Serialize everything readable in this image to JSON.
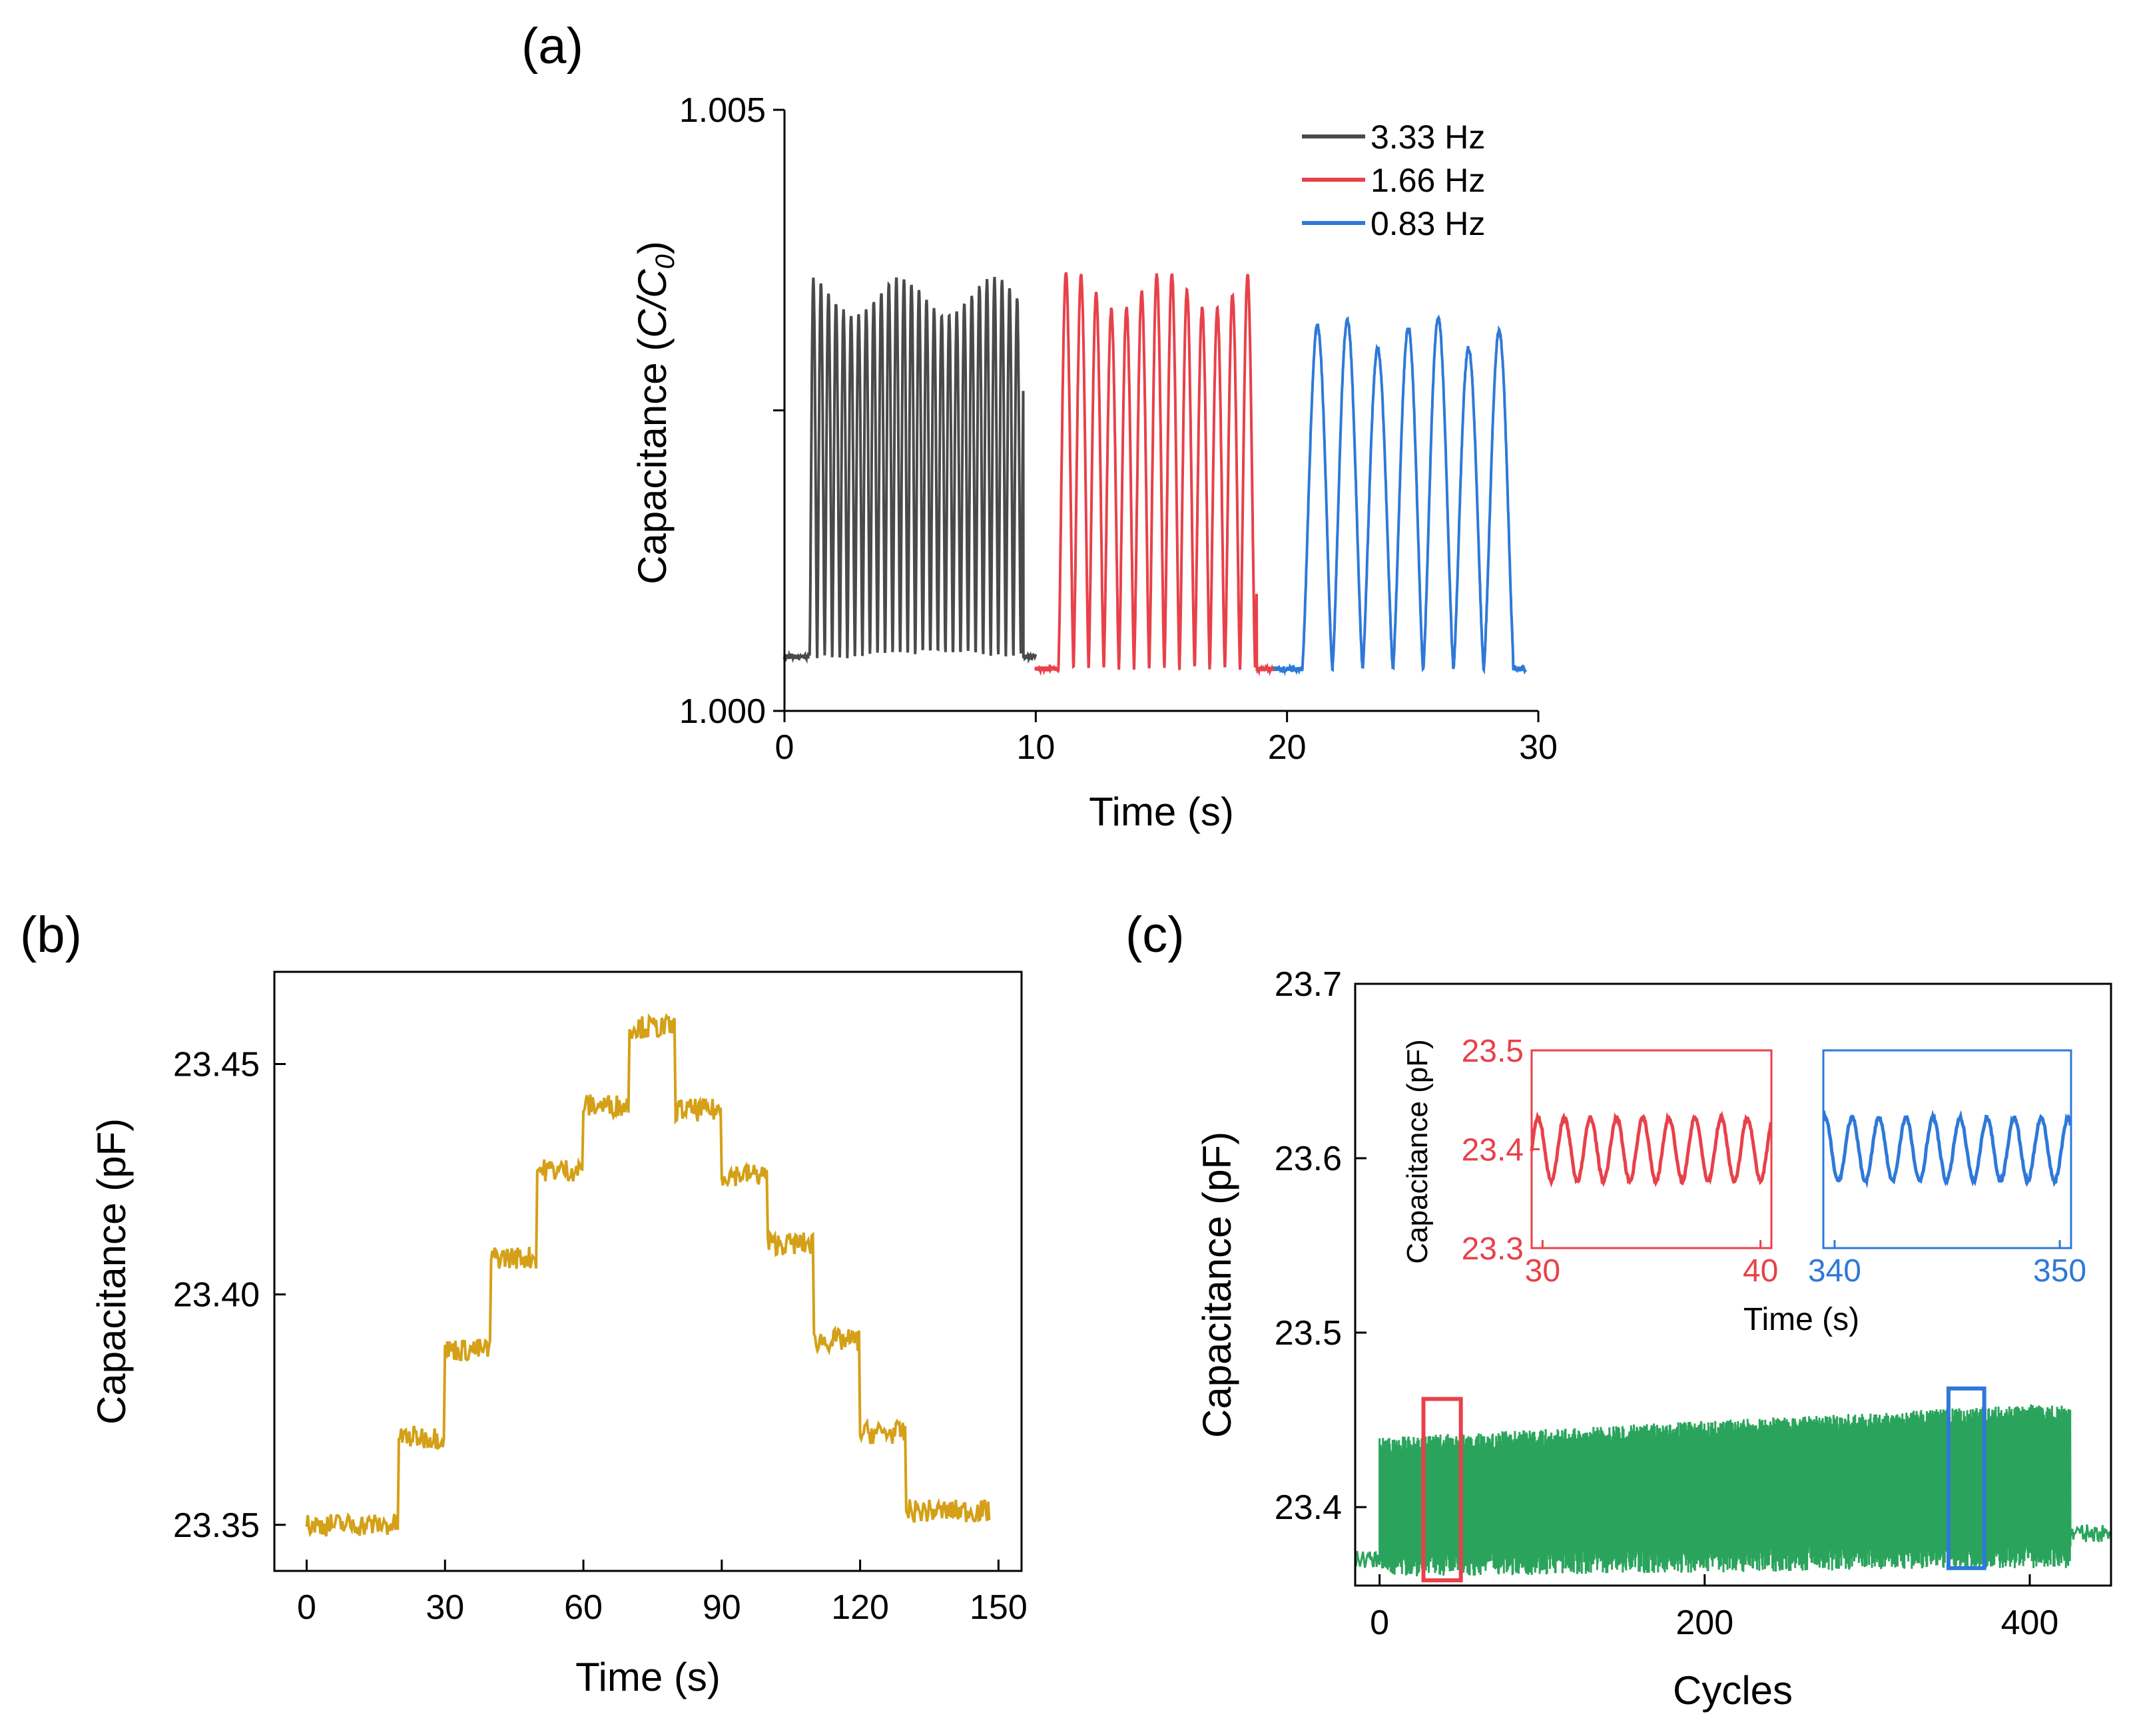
{
  "chart_data": [
    {
      "panel": "(a)",
      "type": "line",
      "xlabel": "Time (s)",
      "ylabel_prefix": "Capacitance (",
      "ylabel_c": "C",
      "ylabel_slash": "/",
      "ylabel_c0": "C",
      "ylabel_sub": "0",
      "ylabel_suffix": ")",
      "xlim": [
        0,
        30
      ],
      "ylim": [
        1.0,
        1.005
      ],
      "xticks": [
        0,
        10,
        20,
        30
      ],
      "yticks": [
        1.0,
        1.0025,
        1.005
      ],
      "ytick_labels": [
        "1.000",
        "",
        "1.005"
      ],
      "series": [
        {
          "name": "3.33 Hz",
          "color": "#4a4a4a",
          "t_start": 0,
          "t_end": 10,
          "signal_start": 1.0,
          "signal_end": 9.5,
          "frequency": 3.33,
          "baseline": 1.00045,
          "peak": 1.0036
        },
        {
          "name": "1.66 Hz",
          "color": "#e8414a",
          "t_start": 10,
          "t_end": 19.5,
          "signal_start": 10.9,
          "signal_end": 18.8,
          "frequency": 1.66,
          "baseline": 1.00035,
          "peak": 1.00365
        },
        {
          "name": "0.83 Hz",
          "color": "#2e79d8",
          "t_start": 19.5,
          "t_end": 29.5,
          "signal_start": 20.6,
          "signal_end": 29.0,
          "frequency": 0.83,
          "baseline": 1.00035,
          "peak": 1.0033
        }
      ]
    },
    {
      "panel": "(b)",
      "type": "line",
      "xlabel": "Time (s)",
      "ylabel": "Capacitance (pF)",
      "xlim": [
        -7,
        155
      ],
      "ylim": [
        23.34,
        23.47
      ],
      "xticks": [
        0,
        30,
        60,
        90,
        120,
        150
      ],
      "yticks": [
        23.35,
        23.4,
        23.45
      ],
      "ytick_labels": [
        "23.35",
        "23.40",
        "23.45"
      ],
      "color": "#d4a017",
      "steps": [
        {
          "t": 0,
          "v": 23.35
        },
        {
          "t": 20,
          "v": 23.369
        },
        {
          "t": 30,
          "v": 23.388
        },
        {
          "t": 40,
          "v": 23.408
        },
        {
          "t": 50,
          "v": 23.427
        },
        {
          "t": 60,
          "v": 23.441
        },
        {
          "t": 70,
          "v": 23.458
        },
        {
          "t": 80,
          "v": 23.44
        },
        {
          "t": 90,
          "v": 23.426
        },
        {
          "t": 100,
          "v": 23.411
        },
        {
          "t": 110,
          "v": 23.39
        },
        {
          "t": 120,
          "v": 23.37
        },
        {
          "t": 130,
          "v": 23.353
        },
        {
          "t": 140,
          "v": 23.353
        },
        {
          "t": 148,
          "v": 23.351
        }
      ]
    },
    {
      "panel": "(c)",
      "type": "area",
      "xlabel": "Cycles",
      "ylabel": "Capacitance (pF)",
      "xlim": [
        -15,
        450
      ],
      "ylim": [
        23.355,
        23.7
      ],
      "xticks": [
        0,
        200,
        400
      ],
      "yticks": [
        23.4,
        23.5,
        23.6,
        23.7
      ],
      "ytick_labels": [
        "23.4",
        "23.5",
        "23.6",
        "23.7"
      ],
      "color": "#2aa45c",
      "baseline_before": 23.37,
      "baseline_after": 23.385,
      "band_start": 0,
      "band_end": 425,
      "band_low": [
        23.37,
        23.375
      ],
      "band_high": [
        23.44,
        23.46
      ],
      "highlight_boxes": [
        {
          "color": "#e8414a",
          "x_range": [
            27,
            50
          ],
          "y_range": [
            23.358,
            23.462
          ]
        },
        {
          "color": "#2e79d8",
          "x_range": [
            350,
            372
          ],
          "y_range": [
            23.365,
            23.468
          ]
        }
      ],
      "inset": {
        "xlabel": "Time (s)",
        "ylabel": "Capacitance (pF)",
        "ylim": [
          23.3,
          23.5
        ],
        "yticks": [
          "23.3",
          "23.4",
          "23.5"
        ],
        "left": {
          "color": "#e8414a",
          "xticks": [
            "30",
            "40"
          ],
          "xlim": [
            29.5,
            40.5
          ],
          "center": 23.4,
          "amplitude": 0.032,
          "period": 1.2
        },
        "right": {
          "color": "#2e79d8",
          "xticks": [
            "340",
            "350"
          ],
          "xlim": [
            339.5,
            350.5
          ],
          "center": 23.4,
          "amplitude": 0.032,
          "period": 1.2
        }
      }
    }
  ],
  "labels": {
    "a": "(a)",
    "b": "(b)",
    "c": "(c)"
  }
}
